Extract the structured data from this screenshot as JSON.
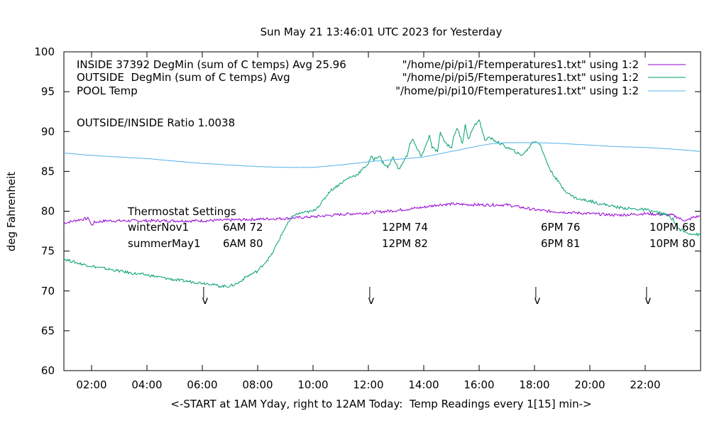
{
  "chart_data": {
    "type": "line",
    "title": "Sun May 21 13:46:01 UTC 2023 for Yesterday",
    "xlabel": "<-START at 1AM Yday, right to 12AM Today:  Temp Readings every 1[15] min->",
    "ylabel": "deg Fahrenheit",
    "xlim": [
      1.0,
      24.0
    ],
    "ylim": [
      60,
      100
    ],
    "x_ticks": [
      {
        "value": 2,
        "label": "02:00"
      },
      {
        "value": 4,
        "label": "04:00"
      },
      {
        "value": 6,
        "label": "06:00"
      },
      {
        "value": 8,
        "label": "08:00"
      },
      {
        "value": 10,
        "label": "10:00"
      },
      {
        "value": 12,
        "label": "12:00"
      },
      {
        "value": 14,
        "label": "14:00"
      },
      {
        "value": 16,
        "label": "16:00"
      },
      {
        "value": 18,
        "label": "18:00"
      },
      {
        "value": 20,
        "label": "20:00"
      },
      {
        "value": 22,
        "label": "22:00"
      }
    ],
    "y_ticks": [
      {
        "value": 60,
        "label": "60"
      },
      {
        "value": 65,
        "label": "65"
      },
      {
        "value": 70,
        "label": "70"
      },
      {
        "value": 75,
        "label": "75"
      },
      {
        "value": 80,
        "label": "80"
      },
      {
        "value": 85,
        "label": "85"
      },
      {
        "value": 90,
        "label": "90"
      },
      {
        "value": 95,
        "label": "95"
      },
      {
        "value": 100,
        "label": "100"
      }
    ],
    "grid": false,
    "legend_position": "top-right",
    "series": [
      {
        "name": "\"/home/pi/pi1/Ftemperatures1.txt\" using 1:2",
        "color": "#9400d3",
        "x": [
          1.0,
          1.5,
          1.9,
          2.0,
          2.1,
          2.5,
          3.0,
          4.0,
          5.0,
          6.0,
          7.0,
          8.0,
          9.0,
          10.0,
          11.0,
          12.0,
          13.0,
          14.0,
          14.5,
          15.0,
          16.0,
          17.0,
          17.5,
          18.0,
          18.5,
          19.0,
          19.5,
          20.0,
          20.5,
          21.0,
          21.5,
          22.0,
          22.5,
          23.0,
          23.3,
          23.5,
          23.7,
          24.0
        ],
        "y": [
          78.5,
          78.9,
          79.1,
          78.2,
          78.6,
          78.8,
          78.8,
          78.8,
          78.8,
          78.8,
          78.9,
          79.0,
          79.1,
          79.3,
          79.6,
          79.8,
          80.1,
          80.5,
          80.8,
          80.9,
          80.8,
          80.8,
          80.5,
          80.2,
          80.0,
          79.9,
          79.8,
          79.7,
          79.6,
          79.5,
          79.6,
          79.7,
          79.6,
          79.5,
          79.0,
          78.8,
          79.2,
          79.4
        ]
      },
      {
        "name": "\"/home/pi/pi5/Ftemperatures1.txt\" using 1:2",
        "color": "#009e73",
        "x": [
          1.0,
          1.5,
          2.0,
          2.5,
          3.0,
          3.5,
          4.0,
          4.5,
          5.0,
          5.5,
          6.0,
          6.3,
          6.6,
          7.0,
          7.3,
          7.6,
          8.0,
          8.5,
          9.0,
          9.3,
          9.6,
          10.0,
          10.3,
          10.6,
          11.0,
          11.3,
          11.6,
          12.0,
          12.1,
          12.2,
          12.4,
          12.5,
          12.7,
          12.9,
          13.0,
          13.1,
          13.4,
          13.5,
          13.6,
          13.8,
          13.9,
          14.0,
          14.2,
          14.3,
          14.5,
          14.6,
          14.8,
          15.0,
          15.1,
          15.2,
          15.4,
          15.5,
          15.6,
          15.8,
          16.0,
          16.2,
          16.4,
          16.6,
          17.0,
          17.3,
          17.5,
          17.7,
          17.9,
          18.0,
          18.2,
          18.4,
          18.6,
          18.8,
          19.0,
          19.3,
          19.6,
          20.0,
          20.3,
          20.6,
          21.0,
          21.5,
          22.0,
          22.5,
          22.8,
          23.0,
          23.2,
          23.5,
          24.0
        ],
        "y": [
          74.0,
          73.5,
          73.1,
          72.8,
          72.5,
          72.2,
          72.0,
          71.7,
          71.4,
          71.2,
          71.0,
          70.9,
          70.6,
          70.6,
          71.0,
          71.8,
          72.5,
          74.5,
          78.0,
          79.5,
          79.8,
          80.0,
          81.0,
          82.5,
          83.5,
          84.2,
          84.6,
          86.0,
          86.8,
          86.5,
          87.0,
          86.2,
          85.5,
          86.8,
          86.0,
          85.2,
          87.0,
          88.5,
          89.0,
          87.5,
          87.0,
          87.5,
          89.5,
          88.0,
          87.5,
          89.8,
          88.5,
          88.0,
          89.5,
          90.5,
          88.5,
          91.0,
          89.0,
          90.5,
          91.5,
          89.0,
          89.2,
          88.8,
          88.0,
          87.5,
          87.0,
          87.5,
          88.5,
          88.8,
          88.5,
          86.5,
          85.0,
          84.0,
          83.0,
          82.0,
          81.5,
          81.3,
          81.0,
          80.8,
          80.5,
          80.3,
          80.2,
          79.8,
          79.5,
          79.0,
          77.8,
          77.3,
          77.0
        ]
      },
      {
        "name": "\"/home/pi/pi10/Ftemperatures1.txt\" using 1:2",
        "color": "#56b4e9",
        "x": [
          1.0,
          2.0,
          3.0,
          4.0,
          5.0,
          6.0,
          7.0,
          8.0,
          9.0,
          10.0,
          11.0,
          12.0,
          13.0,
          14.0,
          15.0,
          16.0,
          16.5,
          17.0,
          18.0,
          19.0,
          20.0,
          21.0,
          22.0,
          23.0,
          24.0
        ],
        "y": [
          87.3,
          87.0,
          86.8,
          86.6,
          86.3,
          86.0,
          85.8,
          85.6,
          85.5,
          85.5,
          85.8,
          86.2,
          86.5,
          86.8,
          87.5,
          88.2,
          88.5,
          88.6,
          88.6,
          88.5,
          88.3,
          88.1,
          88.0,
          87.8,
          87.5
        ]
      }
    ],
    "annotations": {
      "left_lines": [
        "INSIDE 37392 DegMin (sum of C temps) Avg 25.96",
        "OUTSIDE  DegMin (sum of C temps) Avg",
        "POOL Temp"
      ],
      "ratio": "OUTSIDE/INSIDE Ratio 1.0038",
      "thermostat": {
        "title": "Thermostat Settings",
        "rows": [
          {
            "name": "winterNov1",
            "values": [
              "6AM 72",
              "12PM 74",
              "6PM 76",
              "10PM 68"
            ]
          },
          {
            "name": "summerMay1",
            "values": [
              "6AM 80",
              "12PM 82",
              "6PM 81",
              "10PM 80"
            ]
          }
        ],
        "marker_x": [
          6.1,
          12.1,
          18.1,
          22.1
        ],
        "marker_label": "v"
      }
    }
  }
}
